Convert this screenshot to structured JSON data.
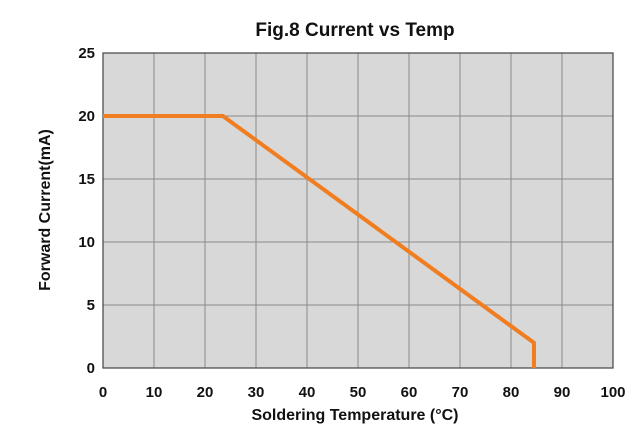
{
  "chart_data": {
    "type": "line",
    "title": "Fig.8 Current vs Temp",
    "xlabel": "Soldering Temperature (°C)",
    "ylabel": "Forward Current(mA)",
    "xlim": [
      0,
      100
    ],
    "ylim": [
      0,
      25
    ],
    "xticks": [
      "0",
      "10",
      "20",
      "30",
      "40",
      "50",
      "60",
      "70",
      "80",
      "90",
      "100"
    ],
    "yticks": [
      "0",
      "5",
      "10",
      "15",
      "20",
      "25"
    ],
    "grid": true,
    "series": [
      {
        "x": [
          0,
          23.5,
          84.5,
          84.5
        ],
        "y": [
          20,
          20,
          2,
          0
        ],
        "color": "#f07d20"
      }
    ],
    "colors": {
      "plot_background": "#d8d8d8",
      "grid": "#8a8a8a",
      "frame": "#444444",
      "line": "#f07d20"
    }
  }
}
